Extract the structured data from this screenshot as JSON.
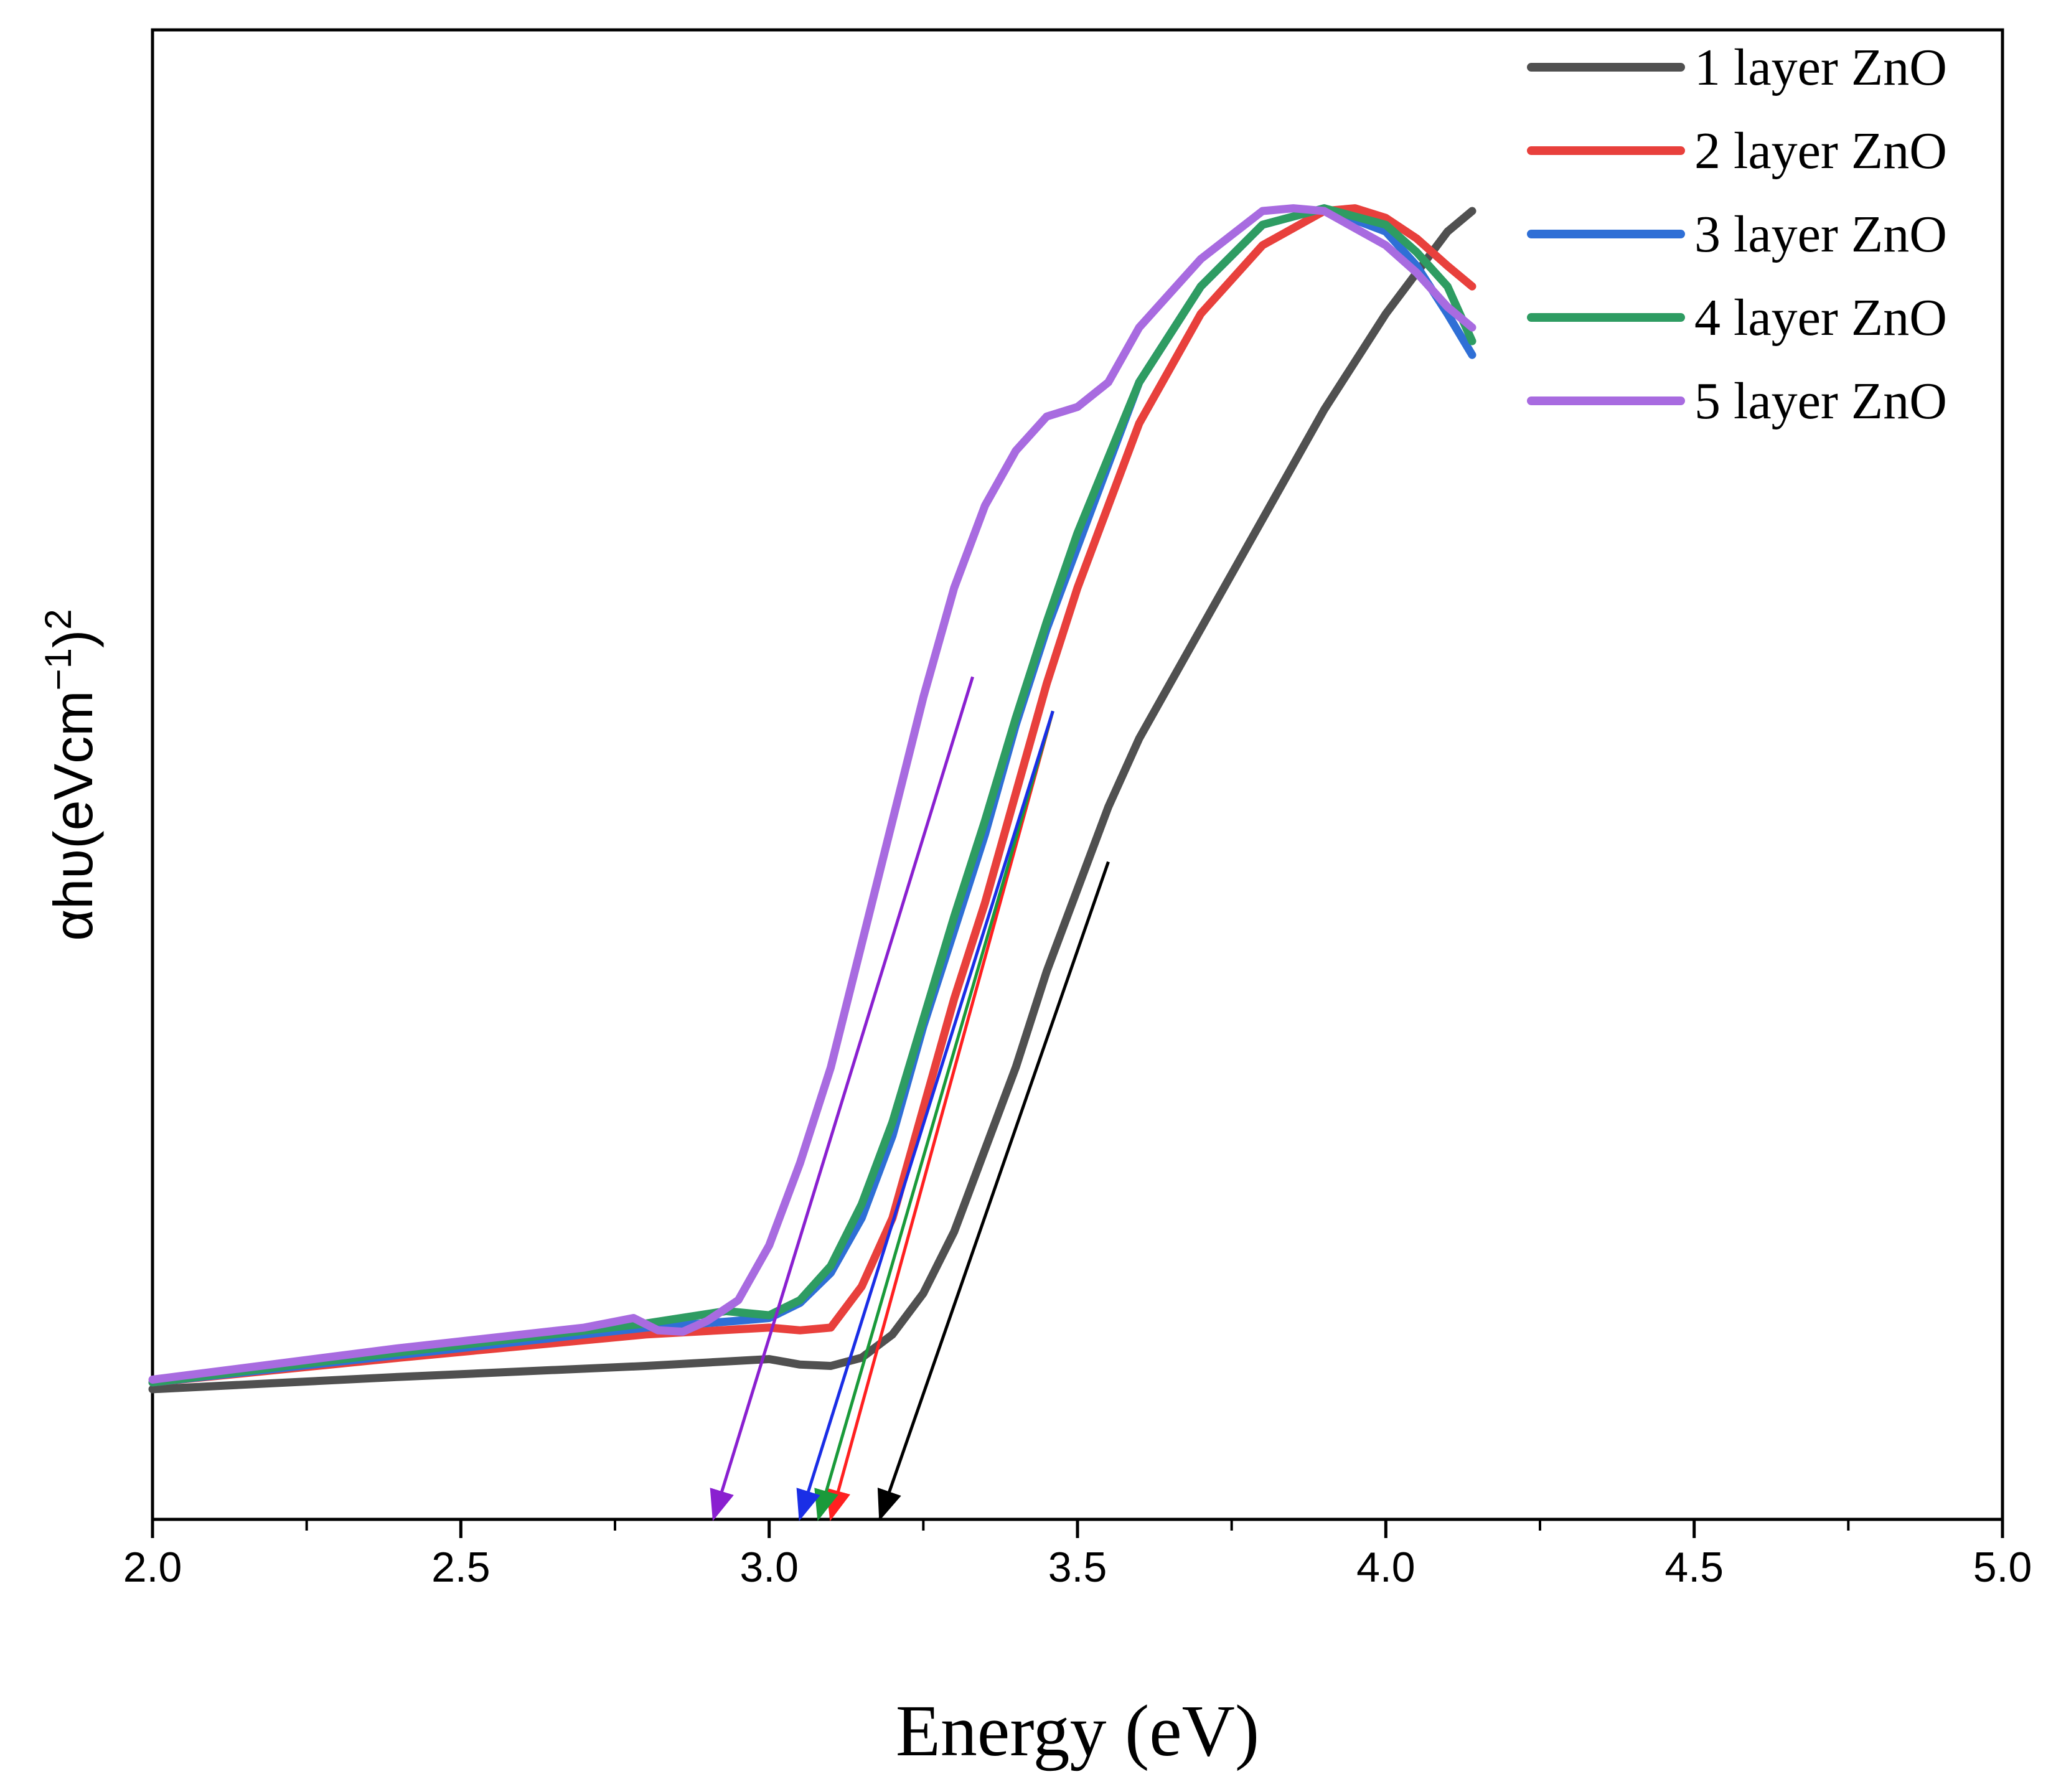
{
  "chart_data": {
    "type": "line",
    "title": "",
    "xlabel": "Energy (eV)",
    "ylabel": {
      "text": "αhυ(eVcm",
      "sup1": "−1",
      "mid": ")",
      "sup2": "2"
    },
    "xlim": [
      2.0,
      5.0
    ],
    "ylim": [
      0,
      1.0
    ],
    "x_ticks": [
      "2.0",
      "2.5",
      "3.0",
      "3.5",
      "4.0",
      "4.5",
      "5.0"
    ],
    "y_ticks_labeled": false,
    "grid": false,
    "legend_position": "top-right",
    "series": [
      {
        "name": "1 layer ZnO",
        "color": "#505050",
        "points": [
          [
            2.0,
            0.095
          ],
          [
            2.4,
            0.104
          ],
          [
            2.8,
            0.112
          ],
          [
            3.0,
            0.117
          ],
          [
            3.05,
            0.113
          ],
          [
            3.1,
            0.112
          ],
          [
            3.15,
            0.118
          ],
          [
            3.2,
            0.135
          ],
          [
            3.25,
            0.165
          ],
          [
            3.3,
            0.21
          ],
          [
            3.35,
            0.27
          ],
          [
            3.4,
            0.33
          ],
          [
            3.45,
            0.4
          ],
          [
            3.5,
            0.46
          ],
          [
            3.55,
            0.52
          ],
          [
            3.6,
            0.57
          ],
          [
            3.7,
            0.65
          ],
          [
            3.8,
            0.73
          ],
          [
            3.9,
            0.81
          ],
          [
            4.0,
            0.88
          ],
          [
            4.05,
            0.91
          ],
          [
            4.1,
            0.94
          ],
          [
            4.14,
            0.955
          ]
        ]
      },
      {
        "name": "2 layer ZnO",
        "color": "#e8403c",
        "points": [
          [
            2.0,
            0.1
          ],
          [
            2.4,
            0.118
          ],
          [
            2.8,
            0.135
          ],
          [
            3.0,
            0.14
          ],
          [
            3.05,
            0.138
          ],
          [
            3.1,
            0.14
          ],
          [
            3.15,
            0.17
          ],
          [
            3.2,
            0.22
          ],
          [
            3.25,
            0.3
          ],
          [
            3.3,
            0.38
          ],
          [
            3.35,
            0.45
          ],
          [
            3.4,
            0.53
          ],
          [
            3.45,
            0.61
          ],
          [
            3.5,
            0.68
          ],
          [
            3.55,
            0.74
          ],
          [
            3.6,
            0.8
          ],
          [
            3.7,
            0.88
          ],
          [
            3.8,
            0.93
          ],
          [
            3.9,
            0.955
          ],
          [
            3.95,
            0.957
          ],
          [
            4.0,
            0.95
          ],
          [
            4.05,
            0.935
          ],
          [
            4.1,
            0.915
          ],
          [
            4.14,
            0.9
          ]
        ]
      },
      {
        "name": "3 layer ZnO",
        "color": "#2f6fd6",
        "points": [
          [
            2.0,
            0.1
          ],
          [
            2.4,
            0.12
          ],
          [
            2.8,
            0.14
          ],
          [
            2.95,
            0.145
          ],
          [
            3.0,
            0.147
          ],
          [
            3.05,
            0.158
          ],
          [
            3.1,
            0.18
          ],
          [
            3.15,
            0.22
          ],
          [
            3.2,
            0.28
          ],
          [
            3.25,
            0.36
          ],
          [
            3.3,
            0.43
          ],
          [
            3.35,
            0.5
          ],
          [
            3.4,
            0.58
          ],
          [
            3.45,
            0.65
          ],
          [
            3.5,
            0.71
          ],
          [
            3.55,
            0.77
          ],
          [
            3.6,
            0.83
          ],
          [
            3.7,
            0.9
          ],
          [
            3.8,
            0.945
          ],
          [
            3.9,
            0.957
          ],
          [
            4.0,
            0.94
          ],
          [
            4.05,
            0.915
          ],
          [
            4.1,
            0.88
          ],
          [
            4.14,
            0.85
          ]
        ]
      },
      {
        "name": "4 layer ZnO",
        "color": "#2e9c62",
        "points": [
          [
            2.0,
            0.1
          ],
          [
            2.4,
            0.122
          ],
          [
            2.8,
            0.143
          ],
          [
            2.93,
            0.152
          ],
          [
            3.0,
            0.149
          ],
          [
            3.05,
            0.16
          ],
          [
            3.1,
            0.185
          ],
          [
            3.15,
            0.23
          ],
          [
            3.2,
            0.29
          ],
          [
            3.25,
            0.365
          ],
          [
            3.3,
            0.44
          ],
          [
            3.35,
            0.51
          ],
          [
            3.4,
            0.585
          ],
          [
            3.45,
            0.655
          ],
          [
            3.5,
            0.72
          ],
          [
            3.55,
            0.775
          ],
          [
            3.6,
            0.83
          ],
          [
            3.7,
            0.9
          ],
          [
            3.8,
            0.945
          ],
          [
            3.9,
            0.957
          ],
          [
            4.0,
            0.945
          ],
          [
            4.05,
            0.925
          ],
          [
            4.1,
            0.9
          ],
          [
            4.14,
            0.86
          ]
        ]
      },
      {
        "name": "5 layer ZnO",
        "color": "#a86be0",
        "points": [
          [
            2.0,
            0.102
          ],
          [
            2.4,
            0.125
          ],
          [
            2.7,
            0.14
          ],
          [
            2.78,
            0.147
          ],
          [
            2.82,
            0.138
          ],
          [
            2.86,
            0.137
          ],
          [
            2.9,
            0.145
          ],
          [
            2.95,
            0.16
          ],
          [
            3.0,
            0.2
          ],
          [
            3.05,
            0.26
          ],
          [
            3.1,
            0.33
          ],
          [
            3.15,
            0.42
          ],
          [
            3.2,
            0.51
          ],
          [
            3.25,
            0.6
          ],
          [
            3.3,
            0.68
          ],
          [
            3.35,
            0.74
          ],
          [
            3.4,
            0.78
          ],
          [
            3.45,
            0.805
          ],
          [
            3.5,
            0.812
          ],
          [
            3.55,
            0.83
          ],
          [
            3.6,
            0.87
          ],
          [
            3.7,
            0.92
          ],
          [
            3.8,
            0.955
          ],
          [
            3.85,
            0.957
          ],
          [
            3.9,
            0.955
          ],
          [
            4.0,
            0.93
          ],
          [
            4.05,
            0.91
          ],
          [
            4.1,
            0.885
          ],
          [
            4.14,
            0.87
          ]
        ]
      }
    ],
    "tangent_arrows": [
      {
        "series": "1 layer ZnO",
        "color": "#000000",
        "from": [
          3.55,
          0.48
        ],
        "to": [
          3.18,
          0.0
        ]
      },
      {
        "series": "2 layer ZnO",
        "color": "#ff2020",
        "from": [
          3.46,
          0.59
        ],
        "to": [
          3.1,
          0.0
        ]
      },
      {
        "series": "4 layer ZnO",
        "color": "#1a9a3a",
        "from": [
          3.46,
          0.59
        ],
        "to": [
          3.08,
          0.0
        ]
      },
      {
        "series": "3 layer ZnO",
        "color": "#1a2ee6",
        "from": [
          3.46,
          0.59
        ],
        "to": [
          3.05,
          0.0
        ]
      },
      {
        "series": "5 layer ZnO",
        "color": "#8a20d0",
        "from": [
          3.33,
          0.615
        ],
        "to": [
          2.91,
          0.0
        ]
      }
    ]
  }
}
